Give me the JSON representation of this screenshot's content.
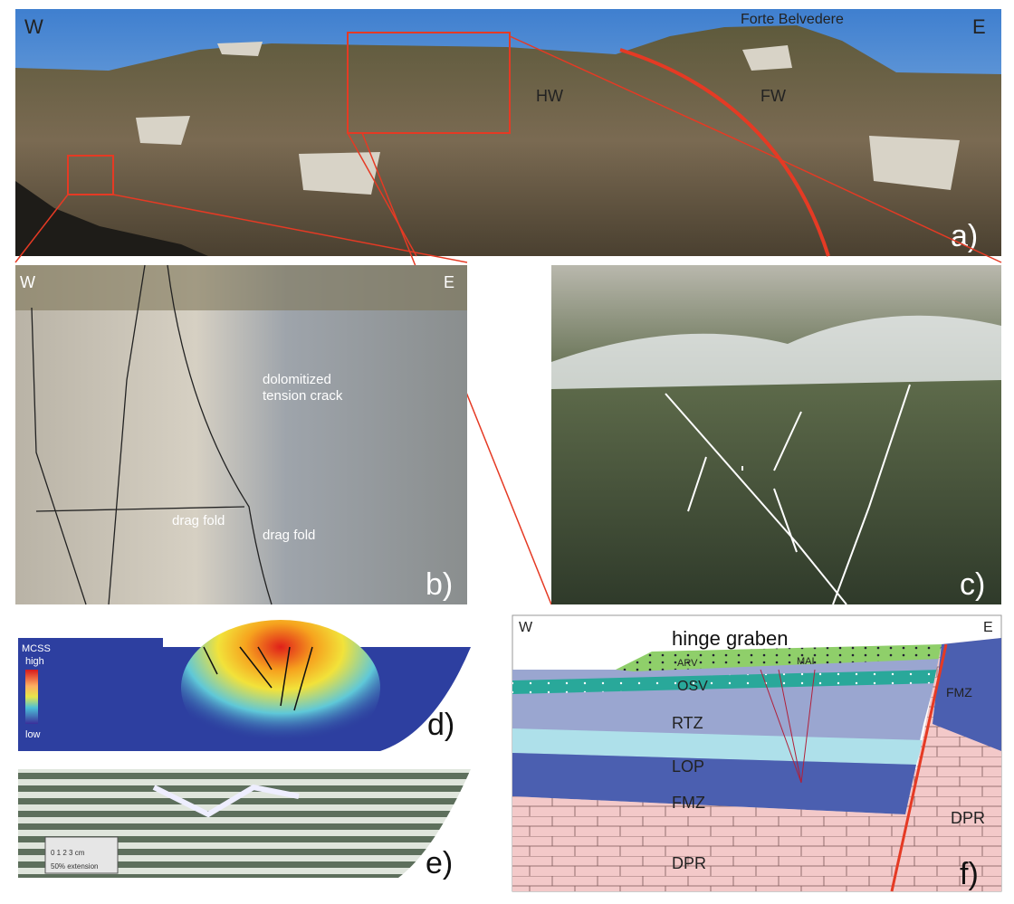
{
  "panels": {
    "a": {
      "west": "W",
      "peak": "Forte Belvedere",
      "east": "E",
      "hanging_wall": "HW",
      "footwall": "FW",
      "tag": "a)"
    },
    "b": {
      "west": "W",
      "east": "E",
      "crack_line1": "dolomitized",
      "crack_line2": "tension crack",
      "fold_left": "drag fold",
      "fold_right": "drag fold",
      "tag": "b)"
    },
    "c": {
      "tag": "c)"
    },
    "d": {
      "scale_title": "MCSS",
      "scale_high": "high",
      "scale_low": "low",
      "tag": "d)"
    },
    "e": {
      "scale_text": "0 1 2 3 cm",
      "extension": "50% extension",
      "tag": "e)"
    },
    "f": {
      "west": "W",
      "east": "E",
      "title": "hinge graben",
      "units": [
        "ARV",
        "MAI",
        "OSV",
        "FMZ",
        "RTZ",
        "LOP",
        "FMZ",
        "DPR",
        "DPR"
      ],
      "tag": "f)"
    }
  }
}
